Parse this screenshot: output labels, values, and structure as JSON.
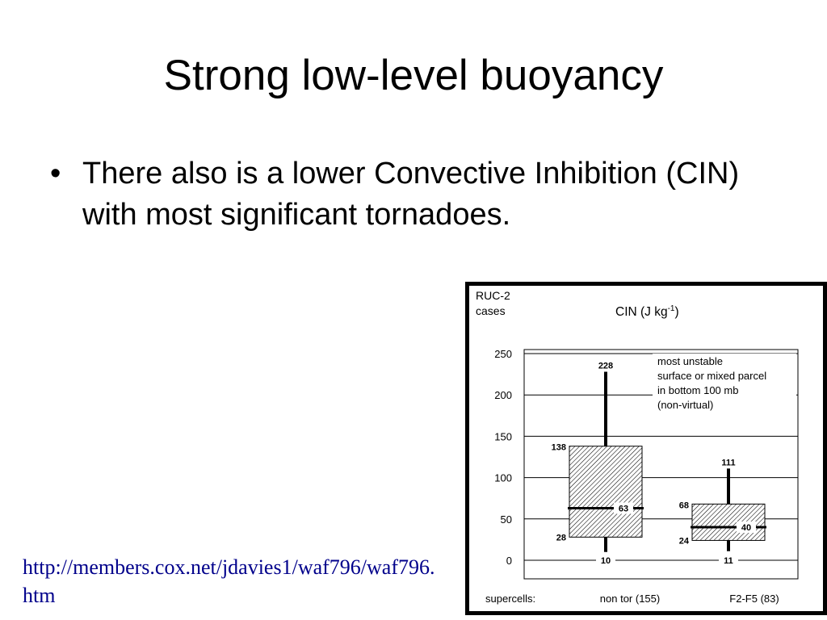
{
  "slide": {
    "title": "Strong low-level buoyancy",
    "bullets": [
      "There also is a lower Convective Inhibition (CIN) with most significant tornadoes."
    ],
    "source_url": "http://members.cox.net/jdavies1/waf796/waf796.htm"
  },
  "chart_data": {
    "type": "box",
    "source_label_lines": [
      "RUC-2",
      "cases"
    ],
    "title": "CIN (J kg",
    "title_unit_exponent": "-1",
    "title_suffix": ")",
    "ylim": [
      0,
      250
    ],
    "yticks": [
      0,
      50,
      100,
      150,
      200,
      250
    ],
    "grid": "horizontal",
    "annotation_lines": [
      "most unstable",
      "surface or mixed parcel",
      "in bottom 100 mb",
      "(non-virtual)"
    ],
    "category_axis_label": "supercells:",
    "categories": [
      "non tor (155)",
      "F2-F5 (83)"
    ],
    "boxes": [
      {
        "category": "non tor (155)",
        "min": 10,
        "q1": 28,
        "median": 63,
        "q3": 138,
        "max": 228
      },
      {
        "category": "F2-F5 (83)",
        "min": 11,
        "q1": 24,
        "median": 40,
        "q3": 68,
        "max": 111
      }
    ],
    "colors": {
      "frame": "#000000",
      "box_hatch": "#000000",
      "grid": "#000000",
      "text": "#000000"
    }
  }
}
